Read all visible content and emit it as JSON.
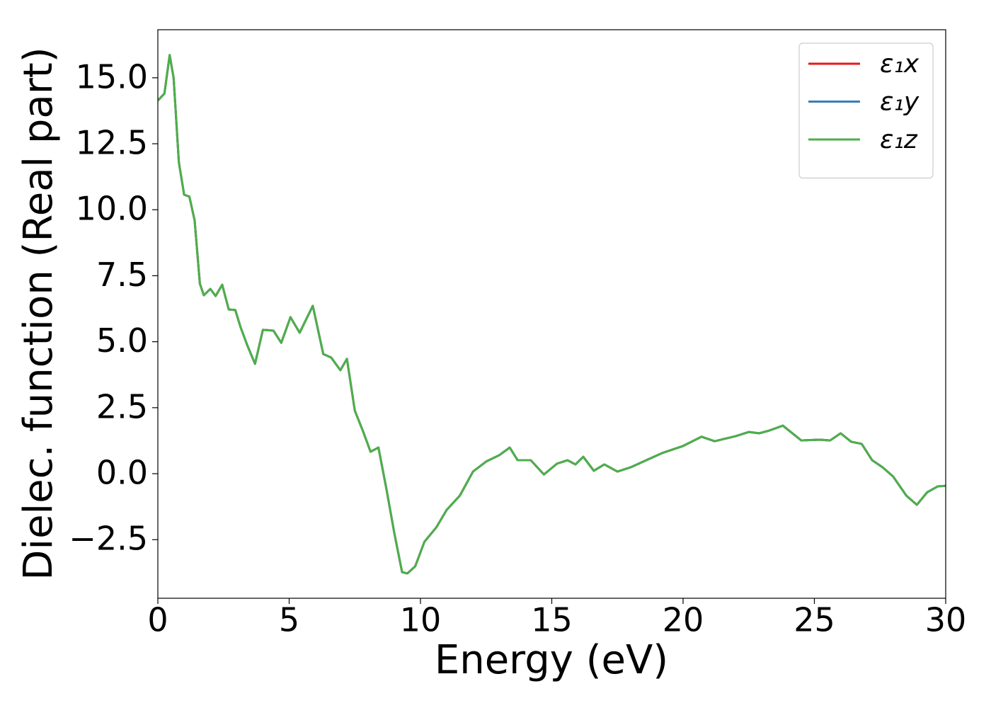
{
  "chart_data": {
    "type": "line",
    "xlabel": "Energy (eV)",
    "ylabel": "Dielec. function (Real part)",
    "x": [
      0,
      0.25,
      0.45,
      0.6,
      0.8,
      1.0,
      1.2,
      1.4,
      1.6,
      1.75,
      2.0,
      2.2,
      2.45,
      2.7,
      2.95,
      3.15,
      3.4,
      3.7,
      4.0,
      4.4,
      4.7,
      5.05,
      5.4,
      5.9,
      6.3,
      6.6,
      6.95,
      7.2,
      7.5,
      7.8,
      8.1,
      8.4,
      8.7,
      9.0,
      9.3,
      9.5,
      9.8,
      10.15,
      10.6,
      11.0,
      11.5,
      12.0,
      12.5,
      13.0,
      13.4,
      13.7,
      14.2,
      14.7,
      15.2,
      15.6,
      15.9,
      16.2,
      16.6,
      17.0,
      17.5,
      18.0,
      18.6,
      19.2,
      20.0,
      20.7,
      21.2,
      22.0,
      22.5,
      22.9,
      23.3,
      23.8,
      24.5,
      25.2,
      25.6,
      26.0,
      26.4,
      26.8,
      27.2,
      27.6,
      28.0,
      28.5,
      28.9,
      29.3,
      29.7,
      30.0
    ],
    "series": [
      {
        "name": "ε₁x",
        "color": "#e41a1c",
        "values": [
          14.14,
          14.4,
          15.86,
          15.0,
          11.8,
          10.57,
          10.5,
          9.6,
          7.2,
          6.76,
          7.0,
          6.73,
          7.16,
          6.22,
          6.2,
          5.55,
          4.88,
          4.16,
          5.45,
          5.42,
          4.96,
          5.93,
          5.34,
          6.36,
          4.53,
          4.4,
          3.92,
          4.35,
          2.39,
          1.64,
          0.83,
          0.99,
          -0.56,
          -2.23,
          -3.73,
          -3.78,
          -3.51,
          -2.58,
          -2.04,
          -1.37,
          -0.83,
          0.08,
          0.46,
          0.7,
          0.99,
          0.51,
          0.51,
          -0.03,
          0.38,
          0.51,
          0.35,
          0.64,
          0.11,
          0.35,
          0.08,
          0.24,
          0.51,
          0.78,
          1.05,
          1.4,
          1.23,
          1.42,
          1.58,
          1.53,
          1.64,
          1.82,
          1.26,
          1.29,
          1.26,
          1.53,
          1.21,
          1.13,
          0.51,
          0.24,
          -0.11,
          -0.83,
          -1.18,
          -0.7,
          -0.48,
          -0.46
        ]
      },
      {
        "name": "ε₁y",
        "color": "#377eb8",
        "values": [
          14.14,
          14.4,
          15.86,
          15.0,
          11.8,
          10.57,
          10.5,
          9.6,
          7.2,
          6.76,
          7.0,
          6.73,
          7.16,
          6.22,
          6.2,
          5.55,
          4.88,
          4.16,
          5.45,
          5.42,
          4.96,
          5.93,
          5.34,
          6.36,
          4.53,
          4.4,
          3.92,
          4.35,
          2.39,
          1.64,
          0.83,
          0.99,
          -0.56,
          -2.23,
          -3.73,
          -3.78,
          -3.51,
          -2.58,
          -2.04,
          -1.37,
          -0.83,
          0.08,
          0.46,
          0.7,
          0.99,
          0.51,
          0.51,
          -0.03,
          0.38,
          0.51,
          0.35,
          0.64,
          0.11,
          0.35,
          0.08,
          0.24,
          0.51,
          0.78,
          1.05,
          1.4,
          1.23,
          1.42,
          1.58,
          1.53,
          1.64,
          1.82,
          1.26,
          1.29,
          1.26,
          1.53,
          1.21,
          1.13,
          0.51,
          0.24,
          -0.11,
          -0.83,
          -1.18,
          -0.7,
          -0.48,
          -0.46
        ]
      },
      {
        "name": "ε₁z",
        "color": "#4daf4a",
        "values": [
          14.14,
          14.4,
          15.86,
          15.0,
          11.8,
          10.57,
          10.5,
          9.6,
          7.2,
          6.76,
          7.0,
          6.73,
          7.16,
          6.22,
          6.2,
          5.55,
          4.88,
          4.16,
          5.45,
          5.42,
          4.96,
          5.93,
          5.34,
          6.36,
          4.53,
          4.4,
          3.92,
          4.35,
          2.39,
          1.64,
          0.83,
          0.99,
          -0.56,
          -2.23,
          -3.73,
          -3.78,
          -3.51,
          -2.58,
          -2.04,
          -1.37,
          -0.83,
          0.08,
          0.46,
          0.7,
          0.99,
          0.51,
          0.51,
          -0.03,
          0.38,
          0.51,
          0.35,
          0.64,
          0.11,
          0.35,
          0.08,
          0.24,
          0.51,
          0.78,
          1.05,
          1.4,
          1.23,
          1.42,
          1.58,
          1.53,
          1.64,
          1.82,
          1.26,
          1.29,
          1.26,
          1.53,
          1.21,
          1.13,
          0.51,
          0.24,
          -0.11,
          -0.83,
          -1.18,
          -0.7,
          -0.48,
          -0.46
        ]
      }
    ],
    "xlim": [
      0,
      30
    ],
    "xticks": [
      0,
      5,
      10,
      15,
      20,
      25,
      30
    ],
    "ylim": [
      -4.72,
      16.82
    ],
    "yticks": [
      {
        "value": -2.5,
        "label": "−2.5"
      },
      {
        "value": 0,
        "label": "0.0"
      },
      2.5,
      {
        "value": 5,
        "label": "5.0"
      },
      7.5,
      {
        "value": 10,
        "label": "10.0"
      },
      12.5,
      {
        "value": 15,
        "label": "15.0"
      }
    ],
    "grid": false,
    "legend": "upper right"
  }
}
